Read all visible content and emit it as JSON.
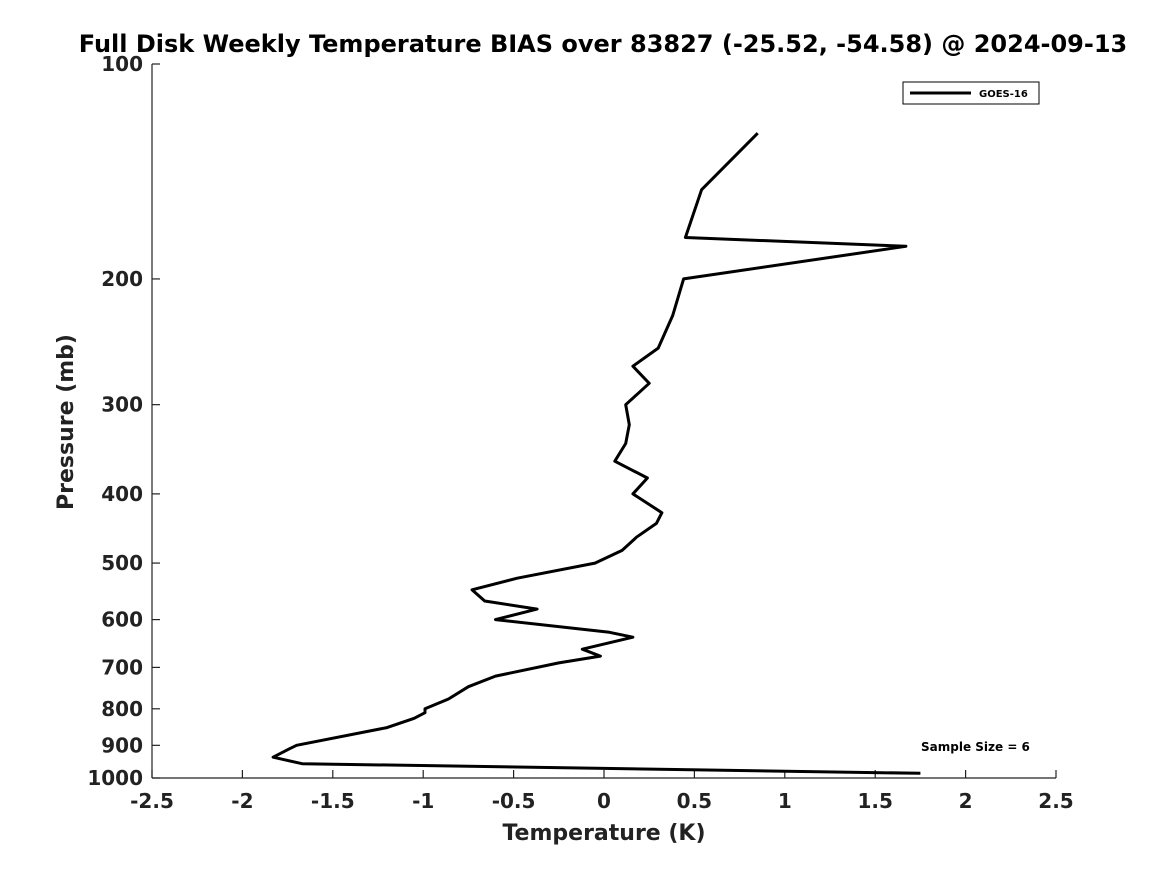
{
  "chart_data": {
    "type": "line",
    "title": "Full Disk Weekly Temperature BIAS over 83827 (-25.52, -54.58) @ 2024-09-13",
    "xlabel": "Temperature (K)",
    "ylabel": "Pressure (mb)",
    "xlim": [
      -2.5,
      2.5
    ],
    "ylim": [
      100,
      1000
    ],
    "y_scale": "log",
    "y_reversed": true,
    "x_ticks": [
      -2.5,
      -2,
      -1.5,
      -1,
      -0.5,
      0,
      0.5,
      1,
      1.5,
      2,
      2.5
    ],
    "x_tick_labels": [
      "-2.5",
      "-2",
      "-1.5",
      "-1",
      "-0.5",
      "0",
      "0.5",
      "1",
      "1.5",
      "2",
      "2.5"
    ],
    "y_ticks": [
      100,
      200,
      300,
      400,
      500,
      600,
      700,
      800,
      900,
      1000
    ],
    "y_tick_labels": [
      "100",
      "200",
      "300",
      "400",
      "500",
      "600",
      "700",
      "800",
      "900",
      "1000"
    ],
    "grid": false,
    "legend_position": "top-right",
    "series": [
      {
        "name": "GOES-16",
        "color": "#000000",
        "points": [
          {
            "x": 0.85,
            "y": 125
          },
          {
            "x": 0.54,
            "y": 150
          },
          {
            "x": 0.45,
            "y": 175
          },
          {
            "x": 1.67,
            "y": 180
          },
          {
            "x": 0.44,
            "y": 200
          },
          {
            "x": 0.38,
            "y": 225
          },
          {
            "x": 0.3,
            "y": 250
          },
          {
            "x": 0.16,
            "y": 265
          },
          {
            "x": 0.25,
            "y": 280
          },
          {
            "x": 0.12,
            "y": 300
          },
          {
            "x": 0.14,
            "y": 320
          },
          {
            "x": 0.12,
            "y": 340
          },
          {
            "x": 0.06,
            "y": 360
          },
          {
            "x": 0.24,
            "y": 380
          },
          {
            "x": 0.16,
            "y": 400
          },
          {
            "x": 0.32,
            "y": 425
          },
          {
            "x": 0.29,
            "y": 440
          },
          {
            "x": 0.18,
            "y": 460
          },
          {
            "x": 0.1,
            "y": 480
          },
          {
            "x": -0.05,
            "y": 500
          },
          {
            "x": -0.48,
            "y": 525
          },
          {
            "x": -0.73,
            "y": 545
          },
          {
            "x": -0.66,
            "y": 565
          },
          {
            "x": -0.37,
            "y": 580
          },
          {
            "x": -0.6,
            "y": 600
          },
          {
            "x": 0.03,
            "y": 625
          },
          {
            "x": 0.16,
            "y": 635
          },
          {
            "x": -0.12,
            "y": 660
          },
          {
            "x": -0.02,
            "y": 675
          },
          {
            "x": -0.25,
            "y": 690
          },
          {
            "x": -0.6,
            "y": 720
          },
          {
            "x": -0.75,
            "y": 745
          },
          {
            "x": -0.86,
            "y": 775
          },
          {
            "x": -0.99,
            "y": 800
          },
          {
            "x": -0.99,
            "y": 810
          },
          {
            "x": -1.05,
            "y": 825
          },
          {
            "x": -1.2,
            "y": 850
          },
          {
            "x": -1.7,
            "y": 900
          },
          {
            "x": -1.74,
            "y": 910
          },
          {
            "x": -1.83,
            "y": 935
          },
          {
            "x": -1.67,
            "y": 955
          },
          {
            "x": 1.75,
            "y": 985
          }
        ]
      }
    ],
    "annotations": [
      {
        "text": "Sample Size = 6"
      }
    ]
  }
}
